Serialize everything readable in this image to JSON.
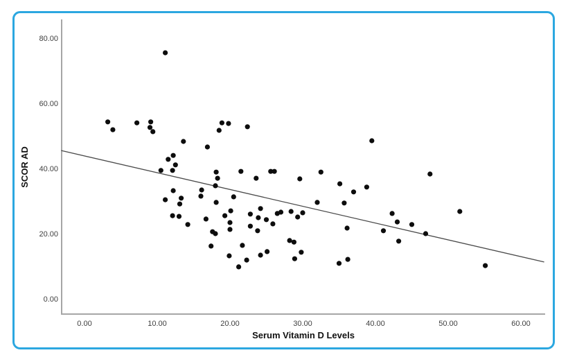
{
  "figure": {
    "border_color": "#2ba7e0",
    "background_color": "#ffffff"
  },
  "chart_data": {
    "type": "scatter",
    "title": "",
    "xlabel": "Serum Vitamin D Levels",
    "ylabel": "SCOR AD",
    "x_tick_labels": [
      "0.00",
      "10.00",
      "20.00",
      "30.00",
      "40.00",
      "50.00",
      "60.00"
    ],
    "x_tick_values": [
      0,
      10,
      20,
      30,
      40,
      50,
      60
    ],
    "y_tick_labels": [
      "0.00",
      "20.00",
      "40.00",
      "60.00",
      "80.00"
    ],
    "y_tick_values": [
      0,
      20,
      40,
      60,
      80
    ],
    "xlim": [
      -3.2,
      63.3
    ],
    "ylim": [
      -4.8,
      85.7
    ],
    "grid": false,
    "legend": "none",
    "point_color": "#0d0d0d",
    "axis_color": "#a6a6a6",
    "trend_line_color": "#4a4a4a",
    "trend_line": {
      "x1": -3.2,
      "y1": 45.5,
      "x2": 63.2,
      "y2": 11.3
    },
    "points": [
      [
        11.1,
        75.5
      ],
      [
        3.2,
        54.3
      ],
      [
        3.9,
        51.9
      ],
      [
        7.2,
        54.0
      ],
      [
        9.1,
        54.3
      ],
      [
        9.0,
        52.6
      ],
      [
        9.4,
        51.3
      ],
      [
        18.9,
        54.0
      ],
      [
        18.5,
        51.7
      ],
      [
        19.8,
        53.8
      ],
      [
        22.4,
        52.8
      ],
      [
        13.6,
        48.3
      ],
      [
        16.9,
        46.6
      ],
      [
        11.5,
        42.8
      ],
      [
        12.2,
        44.0
      ],
      [
        12.5,
        41.1
      ],
      [
        10.5,
        39.4
      ],
      [
        12.1,
        39.4
      ],
      [
        18.1,
        38.9
      ],
      [
        18.3,
        37.0
      ],
      [
        18.0,
        34.7
      ],
      [
        12.2,
        33.2
      ],
      [
        11.1,
        30.4
      ],
      [
        13.3,
        30.9
      ],
      [
        13.1,
        29.1
      ],
      [
        16.1,
        33.4
      ],
      [
        16.0,
        31.5
      ],
      [
        12.1,
        25.5
      ],
      [
        13.0,
        25.3
      ],
      [
        18.1,
        29.6
      ],
      [
        16.7,
        24.5
      ],
      [
        14.2,
        22.8
      ],
      [
        17.6,
        20.6
      ],
      [
        18.0,
        20.0
      ],
      [
        17.4,
        16.2
      ],
      [
        21.5,
        39.1
      ],
      [
        23.6,
        37.0
      ],
      [
        25.6,
        39.1
      ],
      [
        26.1,
        39.1
      ],
      [
        29.6,
        36.8
      ],
      [
        32.5,
        38.9
      ],
      [
        35.1,
        35.3
      ],
      [
        37.0,
        32.8
      ],
      [
        38.8,
        34.3
      ],
      [
        39.5,
        48.5
      ],
      [
        47.5,
        38.3
      ],
      [
        20.5,
        31.3
      ],
      [
        20.1,
        27.0
      ],
      [
        19.3,
        25.5
      ],
      [
        20.0,
        23.4
      ],
      [
        20.0,
        21.3
      ],
      [
        22.8,
        26.0
      ],
      [
        23.9,
        24.9
      ],
      [
        24.2,
        27.7
      ],
      [
        22.8,
        22.3
      ],
      [
        23.8,
        20.9
      ],
      [
        25.0,
        24.3
      ],
      [
        25.9,
        23.0
      ],
      [
        26.5,
        26.2
      ],
      [
        27.0,
        26.6
      ],
      [
        28.4,
        26.8
      ],
      [
        29.3,
        25.1
      ],
      [
        30.0,
        26.4
      ],
      [
        32.0,
        29.6
      ],
      [
        35.7,
        29.4
      ],
      [
        36.1,
        21.7
      ],
      [
        41.1,
        20.9
      ],
      [
        42.3,
        26.2
      ],
      [
        43.0,
        23.6
      ],
      [
        45.0,
        22.8
      ],
      [
        46.9,
        20.0
      ],
      [
        51.6,
        26.8
      ],
      [
        43.2,
        17.7
      ],
      [
        55.1,
        10.2
      ],
      [
        21.7,
        16.4
      ],
      [
        19.9,
        13.2
      ],
      [
        22.3,
        11.9
      ],
      [
        21.2,
        9.8
      ],
      [
        24.2,
        13.4
      ],
      [
        25.1,
        14.5
      ],
      [
        28.2,
        17.9
      ],
      [
        28.8,
        17.4
      ],
      [
        29.8,
        14.3
      ],
      [
        28.9,
        12.3
      ],
      [
        35.0,
        10.9
      ],
      [
        36.2,
        12.1
      ]
    ]
  }
}
